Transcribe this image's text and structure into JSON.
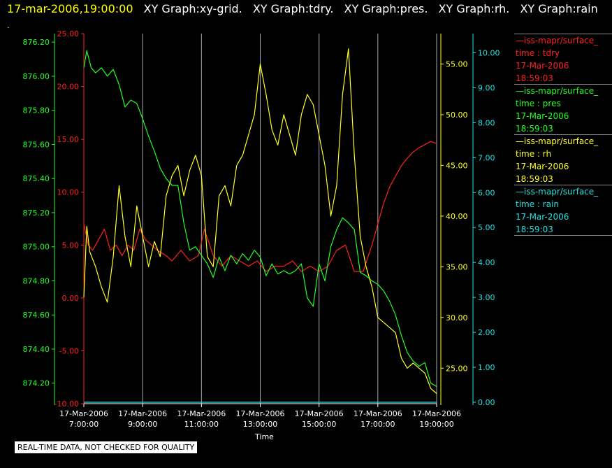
{
  "header": {
    "time": "17-mar-2006,19:00:00",
    "items": [
      "XY Graph:xy-grid.",
      "XY Graph:tdry.",
      "XY Graph:pres.",
      "XY Graph:rh.",
      "XY Graph:rain"
    ]
  },
  "dot": ".",
  "notice": "REAL-TIME DATA, NOT CHECKED FOR QUALITY",
  "legend": [
    {
      "color": "#ff2020",
      "lines": [
        "—iss-mapr/surface_",
        "time : tdry",
        "17-Mar-2006",
        "18:59:03"
      ]
    },
    {
      "color": "#20ff20",
      "lines": [
        "—iss-mapr/surface_",
        "time : pres",
        "17-Mar-2006",
        "18:59:03"
      ]
    },
    {
      "color": "#ffff20",
      "lines": [
        "—iss-mapr/surface_",
        "time : rh",
        "17-Mar-2006",
        "18:59:03"
      ]
    },
    {
      "color": "#20e0e0",
      "lines": [
        "—iss-mapr/surface_",
        "time : rain",
        "17-Mar-2006",
        "18:59:03"
      ]
    }
  ],
  "chart_data": {
    "type": "line",
    "xlabel": "Time",
    "x_ticks": [
      {
        "date": "17-Mar-2006",
        "time": "7:00:00",
        "hour": 7
      },
      {
        "date": "17-Mar-2006",
        "time": "9:00:00",
        "hour": 9
      },
      {
        "date": "17-Mar-2006",
        "time": "11:00:00",
        "hour": 11
      },
      {
        "date": "17-Mar-2006",
        "time": "13:00:00",
        "hour": 13
      },
      {
        "date": "17-Mar-2006",
        "time": "15:00:00",
        "hour": 15
      },
      {
        "date": "17-Mar-2006",
        "time": "17:00:00",
        "hour": 17
      },
      {
        "date": "17-Mar-2006",
        "time": "19:00:00",
        "hour": 19
      }
    ],
    "xlim": [
      7,
      19
    ],
    "grid": "vertical",
    "axes": {
      "pres": {
        "color": "#20ff20",
        "ylim": [
          874.08,
          876.25
        ],
        "ticks": [
          "876.20",
          "876.00",
          "875.80",
          "875.60",
          "875.40",
          "875.20",
          "875.00",
          "874.80",
          "874.60",
          "874.40",
          "874.20"
        ],
        "tick_values": [
          876.2,
          876.0,
          875.8,
          875.6,
          875.4,
          875.2,
          875.0,
          874.8,
          874.6,
          874.4,
          874.2
        ]
      },
      "tdry": {
        "color": "#ff2020",
        "ylim": [
          -10,
          25
        ],
        "ticks": [
          "25.00",
          "20.00",
          "15.00",
          "10.00",
          "5.00",
          "0.00",
          "-5.00",
          "-10.00"
        ],
        "tick_values": [
          25,
          20,
          15,
          10,
          5,
          0,
          -5,
          -10
        ]
      },
      "rh": {
        "color": "#ffff20",
        "ylim": [
          21.5,
          58.0
        ],
        "ticks": [
          "55.00",
          "50.00",
          "45.00",
          "40.00",
          "35.00",
          "30.00",
          "25.00"
        ],
        "tick_values": [
          55,
          50,
          45,
          40,
          35,
          30,
          25
        ]
      },
      "rain": {
        "color": "#20e0e0",
        "ylim": [
          -0.04,
          10.55
        ],
        "ticks": [
          "10.00",
          "9.00",
          "8.00",
          "7.00",
          "6.00",
          "5.00",
          "4.00",
          "3.00",
          "2.00",
          "1.00",
          "0.00"
        ],
        "tick_values": [
          10,
          9,
          8,
          7,
          6,
          5,
          4,
          3,
          2,
          1,
          0
        ]
      }
    },
    "series": [
      {
        "name": "tdry",
        "axis": "tdry",
        "color": "#ff2020",
        "x": [
          7.0,
          7.15,
          7.3,
          7.5,
          7.7,
          7.9,
          8.1,
          8.3,
          8.5,
          8.7,
          8.9,
          9.1,
          9.3,
          9.5,
          9.8,
          10.0,
          10.3,
          10.6,
          10.9,
          11.1,
          11.4,
          11.7,
          12.0,
          12.3,
          12.6,
          12.9,
          13.2,
          13.5,
          13.8,
          14.1,
          14.4,
          14.7,
          15.0,
          15.3,
          15.6,
          15.9,
          16.2,
          16.5,
          16.8,
          17.0,
          17.2,
          17.4,
          17.6,
          17.8,
          18.0,
          18.2,
          18.4,
          18.6,
          18.8,
          19.0
        ],
        "y": [
          7.0,
          5.0,
          4.5,
          5.5,
          6.5,
          4.5,
          5.0,
          4.0,
          5.0,
          4.5,
          6.5,
          5.5,
          5.0,
          4.5,
          4.0,
          3.5,
          4.5,
          3.5,
          4.0,
          6.5,
          4.0,
          3.0,
          4.0,
          3.5,
          3.0,
          3.5,
          2.5,
          3.0,
          3.0,
          3.5,
          2.5,
          3.0,
          2.5,
          3.0,
          4.5,
          5.0,
          2.5,
          2.5,
          5.0,
          7.0,
          9.0,
          10.5,
          11.5,
          12.5,
          13.2,
          13.8,
          14.2,
          14.5,
          14.8,
          14.6
        ]
      },
      {
        "name": "pres",
        "axis": "pres",
        "color": "#20ff20",
        "x": [
          7.0,
          7.1,
          7.25,
          7.4,
          7.6,
          7.8,
          8.0,
          8.2,
          8.4,
          8.6,
          8.8,
          9.0,
          9.2,
          9.4,
          9.6,
          9.8,
          10.0,
          10.2,
          10.4,
          10.6,
          10.8,
          11.0,
          11.2,
          11.4,
          11.6,
          11.8,
          12.0,
          12.2,
          12.4,
          12.6,
          12.8,
          13.0,
          13.2,
          13.4,
          13.6,
          13.8,
          14.0,
          14.2,
          14.4,
          14.6,
          14.8,
          15.0,
          15.2,
          15.4,
          15.6,
          15.8,
          16.0,
          16.2,
          16.4,
          16.6,
          16.8,
          17.0,
          17.2,
          17.4,
          17.6,
          17.8,
          18.0,
          18.2,
          18.4,
          18.6,
          18.8,
          19.0
        ],
        "y": [
          876.05,
          876.15,
          876.05,
          876.02,
          876.05,
          876.0,
          876.04,
          875.95,
          875.82,
          875.86,
          875.84,
          875.75,
          875.65,
          875.56,
          875.46,
          875.4,
          875.36,
          875.36,
          875.14,
          874.98,
          875.0,
          874.95,
          874.9,
          874.82,
          874.94,
          874.86,
          874.95,
          874.9,
          874.96,
          874.92,
          874.98,
          874.94,
          874.83,
          874.9,
          874.84,
          874.86,
          874.84,
          874.86,
          874.9,
          874.7,
          874.65,
          874.9,
          874.8,
          875.0,
          875.1,
          875.17,
          875.14,
          875.1,
          874.85,
          874.83,
          874.8,
          874.78,
          874.74,
          874.68,
          874.6,
          874.48,
          874.38,
          874.33,
          874.3,
          874.32,
          874.2,
          874.18
        ]
      },
      {
        "name": "rh",
        "axis": "rh",
        "color": "#ffff20",
        "x": [
          7.0,
          7.1,
          7.2,
          7.4,
          7.6,
          7.8,
          8.0,
          8.2,
          8.4,
          8.6,
          8.8,
          9.0,
          9.2,
          9.4,
          9.6,
          9.8,
          10.0,
          10.2,
          10.4,
          10.6,
          10.8,
          11.0,
          11.2,
          11.4,
          11.6,
          11.8,
          12.0,
          12.2,
          12.4,
          12.6,
          12.8,
          13.0,
          13.2,
          13.4,
          13.6,
          13.8,
          14.0,
          14.2,
          14.4,
          14.6,
          14.8,
          15.0,
          15.2,
          15.4,
          15.6,
          15.8,
          16.0,
          16.2,
          16.4,
          16.6,
          16.8,
          17.0,
          17.2,
          17.4,
          17.6,
          17.8,
          18.0,
          18.2,
          18.4,
          18.6,
          18.8,
          19.0
        ],
        "y": [
          32.0,
          39.0,
          36.5,
          35.0,
          33.0,
          31.5,
          36.0,
          43.0,
          38.0,
          35.0,
          41.0,
          38.0,
          35.0,
          37.5,
          36.0,
          42.0,
          44.0,
          45.0,
          42.0,
          44.5,
          46.0,
          44.0,
          36.0,
          35.0,
          42.0,
          43.0,
          41.0,
          45.0,
          46.0,
          48.0,
          50.0,
          55.0,
          52.0,
          48.5,
          47.0,
          50.0,
          48.0,
          46.0,
          50.0,
          52.0,
          51.0,
          48.0,
          45.0,
          40.0,
          43.0,
          52.0,
          56.5,
          46.0,
          38.0,
          35.0,
          33.0,
          30.0,
          29.5,
          29.0,
          28.5,
          26.0,
          25.0,
          25.5,
          25.0,
          24.5,
          23.0,
          22.5
        ]
      },
      {
        "name": "rain",
        "axis": "rain",
        "color": "#20e0e0",
        "x": [
          7.0,
          19.0
        ],
        "y": [
          0.0,
          0.0
        ]
      }
    ]
  }
}
